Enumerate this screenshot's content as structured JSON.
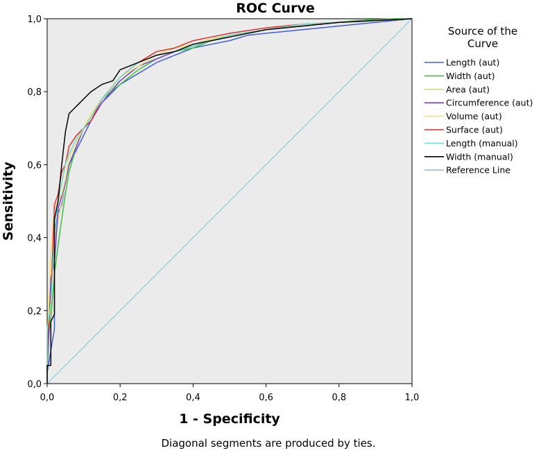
{
  "chart_data": {
    "type": "line",
    "title": "ROC Curve",
    "xlabel": "1 - Specificity",
    "ylabel": "Sensitivity",
    "xlim": [
      0,
      1
    ],
    "ylim": [
      0,
      1
    ],
    "x_ticks": [
      "0,0",
      "0,2",
      "0,4",
      "0,6",
      "0,8",
      "1,0"
    ],
    "y_ticks": [
      "0,0",
      "0,2",
      "0,4",
      "0,6",
      "0,8",
      "1,0"
    ],
    "grid": false,
    "legend_title": "Source of the Curve",
    "legend_title_lines": [
      "Source of the",
      "Curve"
    ],
    "legend_position": "right",
    "footnote": "Diagonal segments are produced by ties.",
    "plot_background": "#ebebeb",
    "series": [
      {
        "name": "Length (aut)",
        "color": "#3f5bd6",
        "x": [
          0,
          0,
          0.02,
          0.02,
          0.03,
          0.04,
          0.05,
          0.06,
          0.08,
          0.1,
          0.12,
          0.15,
          0.2,
          0.25,
          0.3,
          0.35,
          0.4,
          0.45,
          0.5,
          0.55,
          0.6,
          0.65,
          0.7,
          0.75,
          0.8,
          0.85,
          0.9,
          0.95,
          1.0
        ],
        "y": [
          0,
          0.03,
          0.15,
          0.42,
          0.47,
          0.49,
          0.55,
          0.6,
          0.64,
          0.68,
          0.72,
          0.77,
          0.82,
          0.85,
          0.88,
          0.9,
          0.92,
          0.93,
          0.94,
          0.955,
          0.96,
          0.965,
          0.97,
          0.975,
          0.98,
          0.985,
          0.99,
          0.995,
          1.0
        ]
      },
      {
        "name": "Width (aut)",
        "color": "#3cc23c",
        "x": [
          0,
          0,
          0.01,
          0.02,
          0.03,
          0.04,
          0.05,
          0.06,
          0.08,
          0.1,
          0.12,
          0.15,
          0.2,
          0.25,
          0.3,
          0.35,
          0.4,
          0.45,
          0.5,
          0.55,
          0.6,
          0.65,
          0.7,
          0.75,
          0.8,
          0.85,
          0.9,
          0.95,
          1.0
        ],
        "y": [
          0,
          0.1,
          0.18,
          0.3,
          0.38,
          0.45,
          0.52,
          0.58,
          0.65,
          0.7,
          0.73,
          0.78,
          0.82,
          0.86,
          0.89,
          0.91,
          0.92,
          0.94,
          0.95,
          0.96,
          0.97,
          0.975,
          0.98,
          0.985,
          0.99,
          0.995,
          0.998,
          1.0,
          1.0
        ]
      },
      {
        "name": "Area (aut)",
        "color": "#d4d48a",
        "x": [
          0,
          0,
          0.01,
          0.02,
          0.03,
          0.05,
          0.06,
          0.08,
          0.1,
          0.12,
          0.15,
          0.2,
          0.25,
          0.3,
          0.35,
          0.4,
          0.45,
          0.5,
          0.6,
          0.7,
          0.8,
          0.9,
          1.0
        ],
        "y": [
          0,
          0.12,
          0.25,
          0.38,
          0.45,
          0.55,
          0.6,
          0.65,
          0.7,
          0.74,
          0.78,
          0.83,
          0.87,
          0.9,
          0.92,
          0.93,
          0.945,
          0.955,
          0.97,
          0.98,
          0.99,
          0.995,
          1.0
        ]
      },
      {
        "name": "Circumference (aut)",
        "color": "#7a3ccf",
        "x": [
          0,
          0,
          0.01,
          0.02,
          0.03,
          0.05,
          0.06,
          0.08,
          0.1,
          0.12,
          0.15,
          0.2,
          0.25,
          0.3,
          0.35,
          0.4,
          0.45,
          0.5,
          0.6,
          0.7,
          0.8,
          0.9,
          1.0
        ],
        "y": [
          0,
          0.02,
          0.29,
          0.33,
          0.48,
          0.55,
          0.6,
          0.65,
          0.7,
          0.72,
          0.77,
          0.83,
          0.87,
          0.89,
          0.91,
          0.925,
          0.94,
          0.955,
          0.97,
          0.98,
          0.99,
          0.995,
          1.0
        ]
      },
      {
        "name": "Volume (aut)",
        "color": "#f0e66e",
        "x": [
          0,
          0,
          0.01,
          0.02,
          0.03,
          0.04,
          0.05,
          0.06,
          0.08,
          0.1,
          0.12,
          0.15,
          0.2,
          0.25,
          0.3,
          0.35,
          0.4,
          0.5,
          0.6,
          0.7,
          0.8,
          0.9,
          1.0
        ],
        "y": [
          0,
          0.12,
          0.35,
          0.48,
          0.5,
          0.52,
          0.56,
          0.62,
          0.66,
          0.7,
          0.74,
          0.78,
          0.84,
          0.87,
          0.9,
          0.92,
          0.93,
          0.955,
          0.97,
          0.985,
          0.99,
          0.995,
          1.0
        ]
      },
      {
        "name": "Surface (aut)",
        "color": "#e02c2c",
        "x": [
          0,
          0,
          0.01,
          0.02,
          0.03,
          0.04,
          0.05,
          0.06,
          0.08,
          0.1,
          0.12,
          0.15,
          0.2,
          0.25,
          0.3,
          0.35,
          0.4,
          0.45,
          0.5,
          0.6,
          0.7,
          0.8,
          0.9,
          1.0
        ],
        "y": [
          0,
          0.11,
          0.23,
          0.49,
          0.52,
          0.58,
          0.6,
          0.65,
          0.68,
          0.7,
          0.72,
          0.78,
          0.84,
          0.88,
          0.91,
          0.92,
          0.94,
          0.95,
          0.96,
          0.975,
          0.985,
          0.99,
          0.995,
          1.0
        ]
      },
      {
        "name": "Length (manual)",
        "color": "#6fe0cf",
        "x": [
          0,
          0,
          0.01,
          0.02,
          0.03,
          0.05,
          0.06,
          0.08,
          0.1,
          0.12,
          0.15,
          0.2,
          0.25,
          0.3,
          0.35,
          0.4,
          0.45,
          0.5,
          0.6,
          0.7,
          0.8,
          0.9,
          1.0
        ],
        "y": [
          0,
          0.15,
          0.22,
          0.4,
          0.5,
          0.6,
          0.63,
          0.67,
          0.7,
          0.73,
          0.78,
          0.84,
          0.88,
          0.9,
          0.91,
          0.925,
          0.94,
          0.955,
          0.97,
          0.985,
          0.99,
          0.995,
          1.0
        ]
      },
      {
        "name": "Width (manual)",
        "color": "#000000",
        "x": [
          0,
          0,
          0.01,
          0.01,
          0.02,
          0.02,
          0.03,
          0.04,
          0.05,
          0.06,
          0.07,
          0.08,
          0.1,
          0.12,
          0.15,
          0.18,
          0.2,
          0.25,
          0.3,
          0.35,
          0.4,
          0.45,
          0.5,
          0.55,
          0.6,
          0.7,
          0.8,
          0.9,
          1.0
        ],
        "y": [
          0,
          0.05,
          0.05,
          0.17,
          0.19,
          0.45,
          0.5,
          0.6,
          0.69,
          0.74,
          0.75,
          0.76,
          0.78,
          0.8,
          0.82,
          0.83,
          0.86,
          0.88,
          0.9,
          0.91,
          0.93,
          0.94,
          0.95,
          0.96,
          0.97,
          0.98,
          0.99,
          0.995,
          1.0
        ]
      },
      {
        "name": "Reference Line",
        "color": "#8fc7e0",
        "x": [
          0,
          1
        ],
        "y": [
          0,
          1
        ]
      }
    ]
  }
}
